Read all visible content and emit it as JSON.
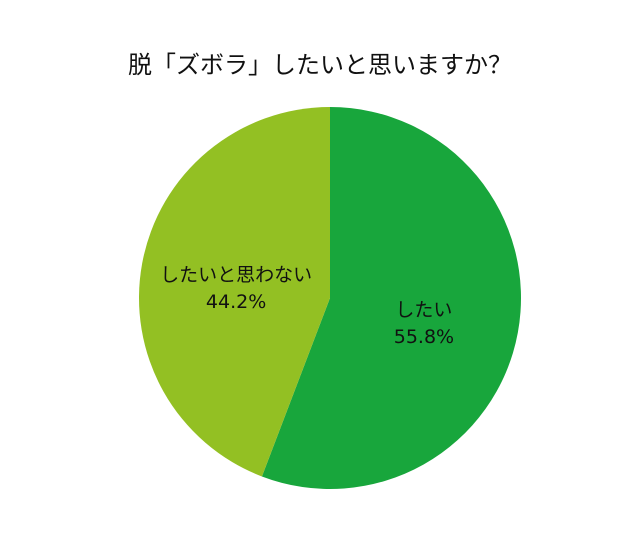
{
  "chart_data": {
    "type": "pie",
    "title": "脱「ズボラ」したいと思いますか？",
    "categories": [
      "したい",
      "したいと思わない"
    ],
    "values": [
      55.8,
      44.2
    ],
    "value_labels": [
      "55.8%",
      "44.2%"
    ],
    "colors": [
      "#18a63c",
      "#93c023"
    ]
  }
}
